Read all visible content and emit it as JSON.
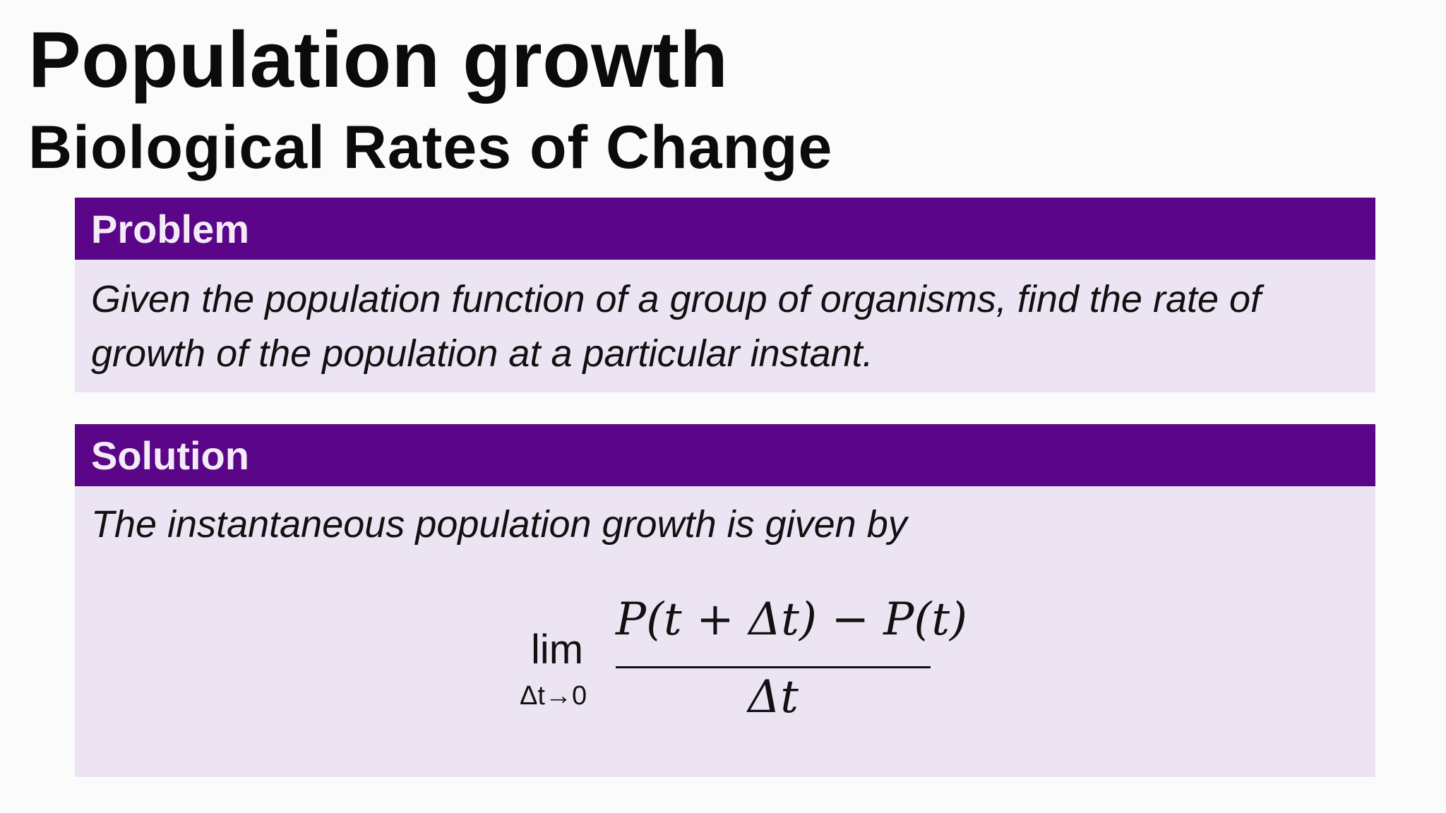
{
  "title": "Population growth",
  "subtitle": "Biological Rates of Change",
  "problem": {
    "heading": "Problem",
    "text": "Given the population function of a group of organisms, find the rate of growth of the population at a particular instant."
  },
  "solution": {
    "heading": "Solution",
    "text": "The instantaneous population growth is given by",
    "formula": {
      "lim": "lim",
      "lim_sub": "Δt→0",
      "numerator": "P(t + Δt) − P(t)",
      "denominator": "Δt"
    }
  },
  "colors": {
    "header_bg": "#5b0688",
    "header_text": "#f3ecf7",
    "body_bg": "#ece4f2"
  }
}
